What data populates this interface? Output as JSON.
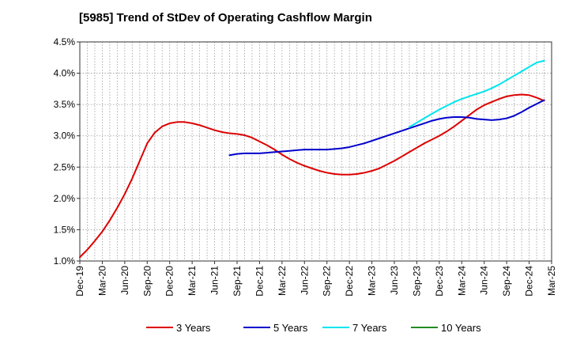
{
  "chart_data": {
    "type": "line",
    "title": "[5985]  Trend of StDev of Operating Cashflow Margin",
    "xlabel": "",
    "ylabel": "",
    "ylim": [
      1.0,
      4.5
    ],
    "yticks": [
      1.0,
      1.5,
      2.0,
      2.5,
      3.0,
      3.5,
      4.0,
      4.5
    ],
    "ytick_labels": [
      "1.0%",
      "1.5%",
      "2.0%",
      "2.5%",
      "3.0%",
      "3.5%",
      "4.0%",
      "4.5%"
    ],
    "x_start": "Dec-19",
    "x_months": 63,
    "x_tick_step_months": 3,
    "categories": [
      "Dec-19",
      "Mar-20",
      "Jun-20",
      "Sep-20",
      "Dec-20",
      "Mar-21",
      "Jun-21",
      "Sep-21",
      "Dec-21",
      "Mar-22",
      "Jun-22",
      "Sep-22",
      "Dec-22",
      "Mar-23",
      "Jun-23",
      "Sep-23",
      "Dec-23",
      "Mar-24",
      "Jun-24",
      "Sep-24",
      "Dec-24",
      "Mar-25"
    ],
    "grid": true,
    "legend_position": "bottom",
    "series": [
      {
        "name": "3 Years",
        "color": "#dd0000",
        "points": [
          [
            0,
            1.06
          ],
          [
            1,
            1.18
          ],
          [
            2,
            1.32
          ],
          [
            3,
            1.47
          ],
          [
            4,
            1.65
          ],
          [
            5,
            1.85
          ],
          [
            6,
            2.07
          ],
          [
            7,
            2.32
          ],
          [
            8,
            2.6
          ],
          [
            9,
            2.88
          ],
          [
            10,
            3.05
          ],
          [
            11,
            3.15
          ],
          [
            12,
            3.2
          ],
          [
            13,
            3.22
          ],
          [
            14,
            3.22
          ],
          [
            15,
            3.2
          ],
          [
            16,
            3.17
          ],
          [
            17,
            3.13
          ],
          [
            18,
            3.09
          ],
          [
            19,
            3.06
          ],
          [
            20,
            3.04
          ],
          [
            21,
            3.03
          ],
          [
            22,
            3.01
          ],
          [
            23,
            2.97
          ],
          [
            24,
            2.91
          ],
          [
            25,
            2.85
          ],
          [
            26,
            2.78
          ],
          [
            27,
            2.7
          ],
          [
            28,
            2.63
          ],
          [
            29,
            2.57
          ],
          [
            30,
            2.52
          ],
          [
            31,
            2.48
          ],
          [
            32,
            2.44
          ],
          [
            33,
            2.41
          ],
          [
            34,
            2.39
          ],
          [
            35,
            2.38
          ],
          [
            36,
            2.38
          ],
          [
            37,
            2.39
          ],
          [
            38,
            2.41
          ],
          [
            39,
            2.44
          ],
          [
            40,
            2.48
          ],
          [
            41,
            2.54
          ],
          [
            42,
            2.6
          ],
          [
            43,
            2.67
          ],
          [
            44,
            2.74
          ],
          [
            45,
            2.81
          ],
          [
            46,
            2.88
          ],
          [
            47,
            2.94
          ],
          [
            48,
            3.0
          ],
          [
            49,
            3.07
          ],
          [
            50,
            3.15
          ],
          [
            51,
            3.24
          ],
          [
            52,
            3.33
          ],
          [
            53,
            3.42
          ],
          [
            54,
            3.49
          ],
          [
            55,
            3.54
          ],
          [
            56,
            3.59
          ],
          [
            57,
            3.63
          ],
          [
            58,
            3.65
          ],
          [
            59,
            3.66
          ],
          [
            60,
            3.65
          ],
          [
            61,
            3.61
          ],
          [
            62,
            3.56
          ]
        ]
      },
      {
        "name": "5 Years",
        "color": "#0000cc",
        "points": [
          [
            20,
            2.69
          ],
          [
            21,
            2.71
          ],
          [
            22,
            2.72
          ],
          [
            23,
            2.72
          ],
          [
            24,
            2.72
          ],
          [
            25,
            2.73
          ],
          [
            26,
            2.74
          ],
          [
            27,
            2.75
          ],
          [
            28,
            2.76
          ],
          [
            29,
            2.77
          ],
          [
            30,
            2.78
          ],
          [
            31,
            2.78
          ],
          [
            32,
            2.78
          ],
          [
            33,
            2.78
          ],
          [
            34,
            2.79
          ],
          [
            35,
            2.8
          ],
          [
            36,
            2.82
          ],
          [
            37,
            2.85
          ],
          [
            38,
            2.88
          ],
          [
            39,
            2.92
          ],
          [
            40,
            2.96
          ],
          [
            41,
            3.0
          ],
          [
            42,
            3.04
          ],
          [
            43,
            3.08
          ],
          [
            44,
            3.12
          ],
          [
            45,
            3.16
          ],
          [
            46,
            3.2
          ],
          [
            47,
            3.24
          ],
          [
            48,
            3.27
          ],
          [
            49,
            3.29
          ],
          [
            50,
            3.3
          ],
          [
            51,
            3.3
          ],
          [
            52,
            3.29
          ],
          [
            53,
            3.27
          ],
          [
            54,
            3.26
          ],
          [
            55,
            3.25
          ],
          [
            56,
            3.26
          ],
          [
            57,
            3.28
          ],
          [
            58,
            3.32
          ],
          [
            59,
            3.38
          ],
          [
            60,
            3.45
          ],
          [
            61,
            3.51
          ],
          [
            62,
            3.57
          ]
        ]
      },
      {
        "name": "7 Years",
        "color": "#00e5ee",
        "points": [
          [
            44,
            3.14
          ],
          [
            45,
            3.21
          ],
          [
            46,
            3.28
          ],
          [
            47,
            3.35
          ],
          [
            48,
            3.42
          ],
          [
            49,
            3.48
          ],
          [
            50,
            3.54
          ],
          [
            51,
            3.59
          ],
          [
            52,
            3.63
          ],
          [
            53,
            3.67
          ],
          [
            54,
            3.71
          ],
          [
            55,
            3.76
          ],
          [
            56,
            3.82
          ],
          [
            57,
            3.89
          ],
          [
            58,
            3.96
          ],
          [
            59,
            4.03
          ],
          [
            60,
            4.1
          ],
          [
            61,
            4.17
          ],
          [
            62,
            4.2
          ]
        ]
      },
      {
        "name": "10 Years",
        "color": "#228b22",
        "points": []
      }
    ]
  }
}
